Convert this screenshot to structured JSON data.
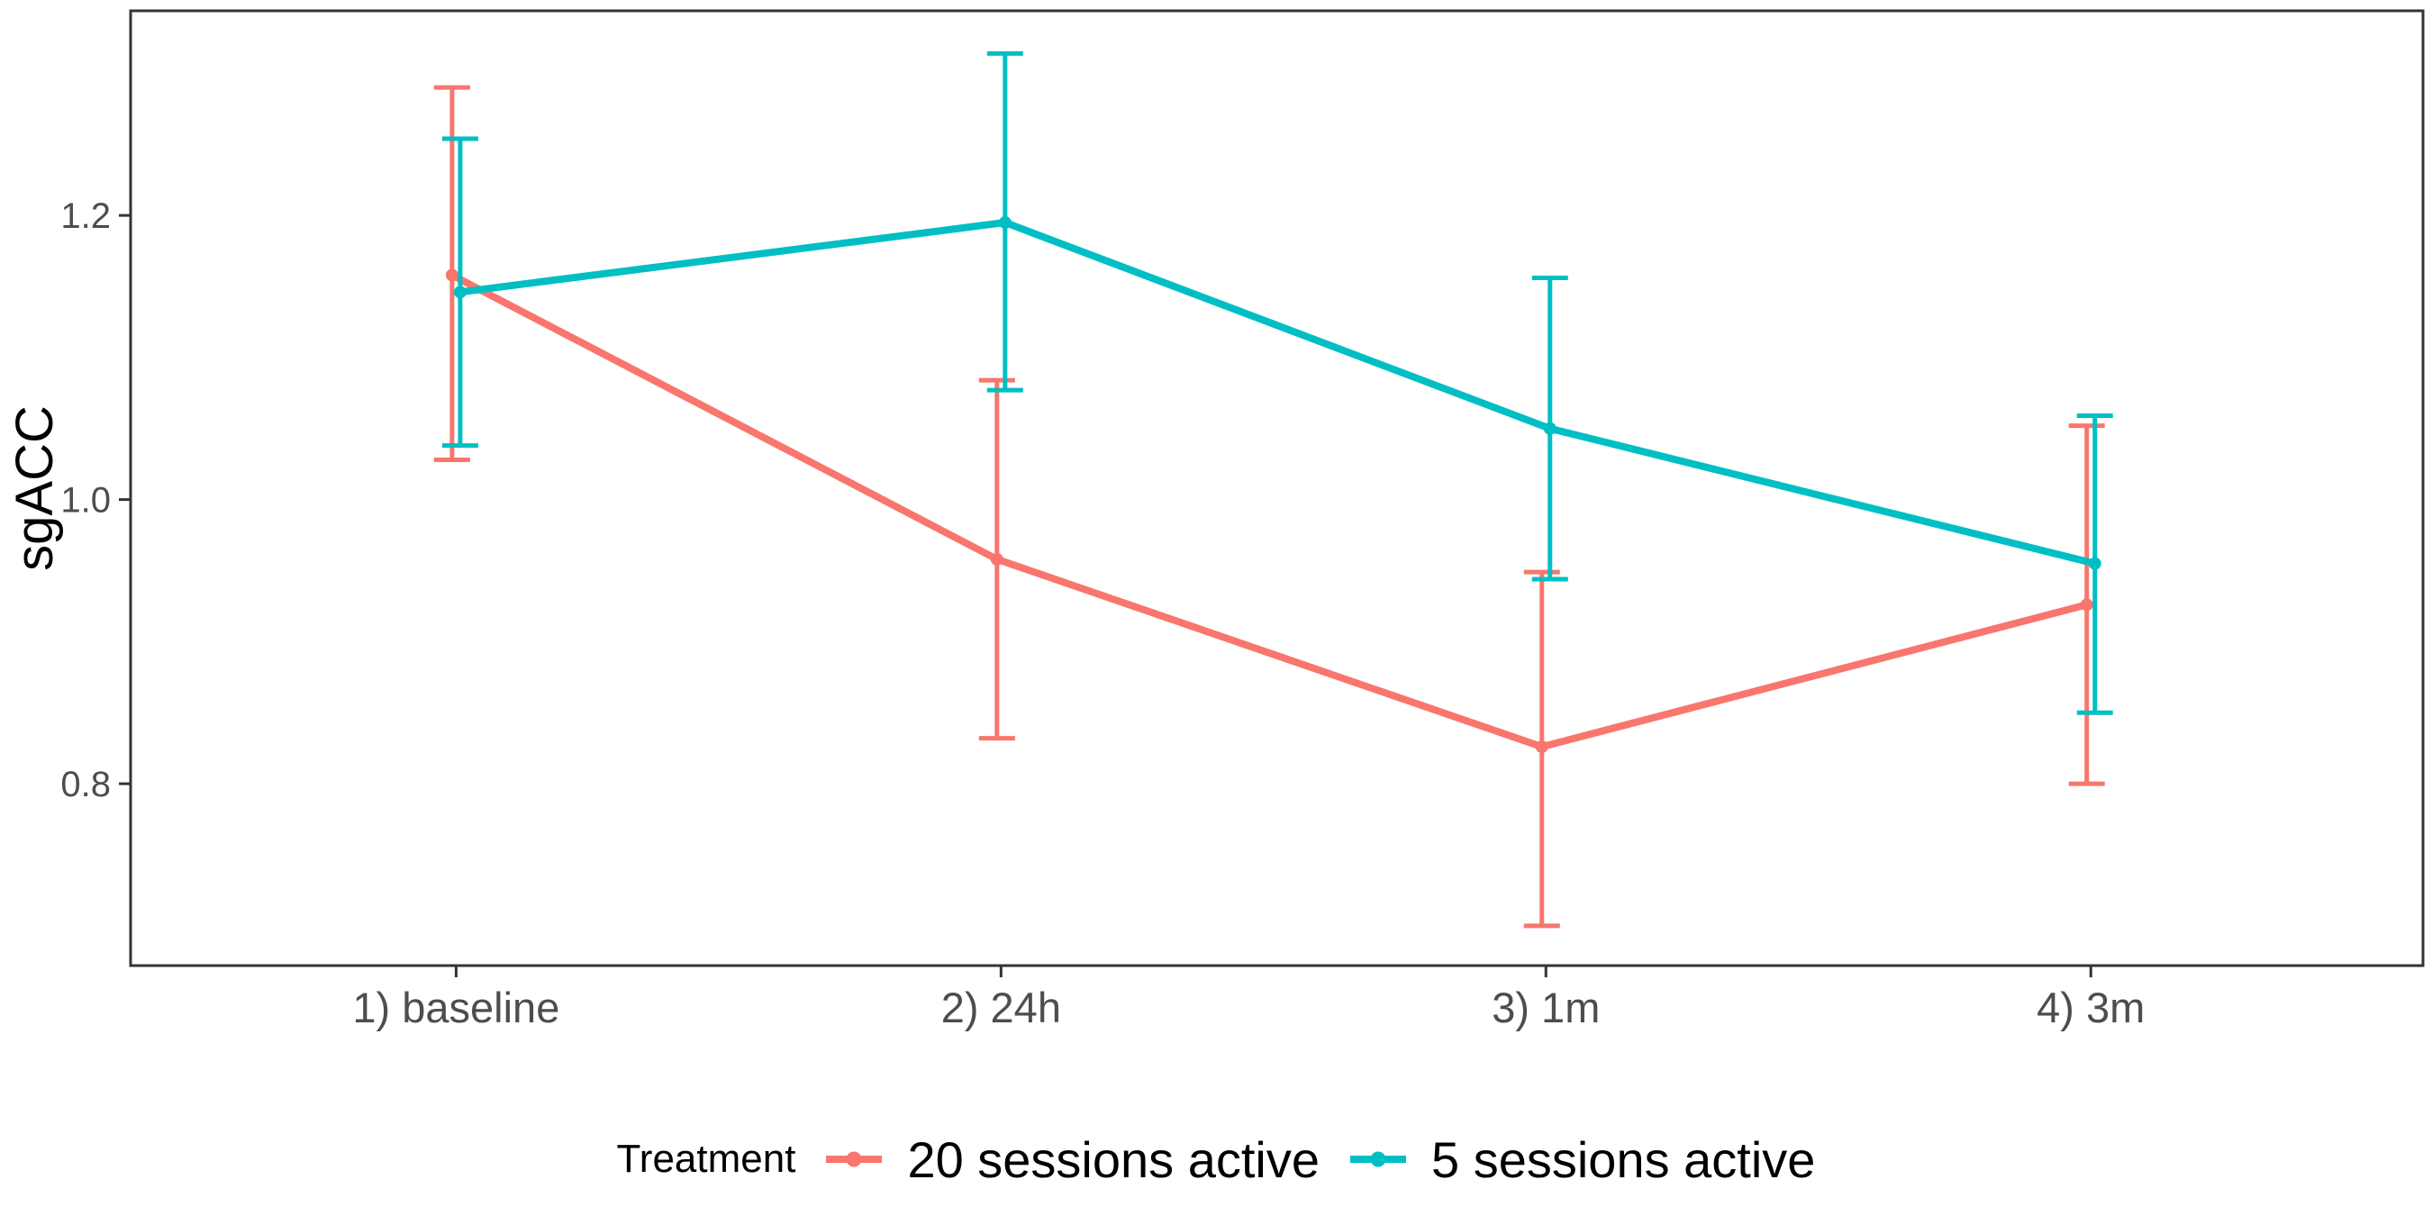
{
  "chart_data": {
    "type": "line",
    "title": "",
    "xlabel": "",
    "ylabel": "sgACC",
    "categories": [
      "1) baseline",
      "2) 24h",
      "3) 1m",
      "4) 3m"
    ],
    "y_ticks": [
      {
        "value": 1.2,
        "label": "1.2"
      },
      {
        "value": 1.0,
        "label": "1.0"
      },
      {
        "value": 0.8,
        "label": "0.8"
      }
    ],
    "ylim": [
      0.672,
      1.344
    ],
    "grid": false,
    "panel_border": true,
    "error_bars": true,
    "legend_position": "bottom",
    "legend_title": "Treatment",
    "series": [
      {
        "name": "20 sessions active",
        "color": "#F8766D",
        "values": [
          1.158,
          0.958,
          0.826,
          0.926
        ],
        "ymin": [
          1.028,
          0.832,
          0.7,
          0.8
        ],
        "ymax": [
          1.29,
          1.084,
          0.949,
          1.052
        ]
      },
      {
        "name": "5 sessions active",
        "color": "#00BFC4",
        "values": [
          1.146,
          1.195,
          1.05,
          0.955
        ],
        "ymin": [
          1.038,
          1.077,
          0.944,
          0.85
        ],
        "ymax": [
          1.254,
          1.314,
          1.156,
          1.059
        ]
      }
    ],
    "colors": {
      "axis": "#343434",
      "tick_label": "#4D4D4D",
      "axis_title": "#000000",
      "background": "#FFFFFF"
    }
  }
}
